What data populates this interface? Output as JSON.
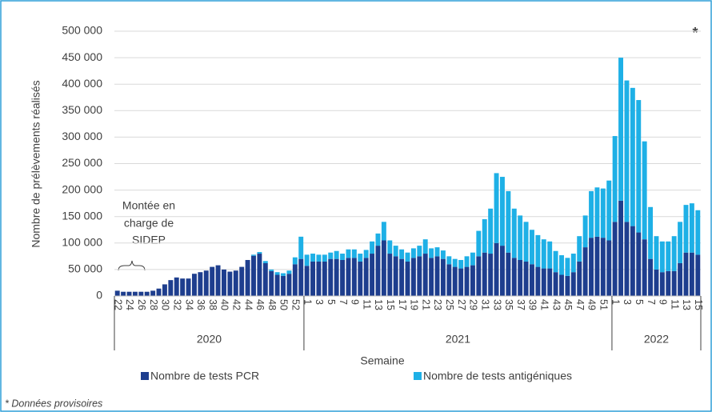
{
  "chart_data": {
    "type": "stacked_bar",
    "y_label": "Nombre de prélèvements réalisés",
    "x_label": "Semaine",
    "asterisk": "*",
    "footnote": "* Données provisoires",
    "annotation": [
      "Montée en",
      "charge de",
      "SIDEP"
    ],
    "groups": [
      {
        "label": "2020",
        "categories": [
          "22",
          null,
          "24",
          null,
          "26",
          null,
          "28",
          null,
          "30",
          null,
          "32",
          null,
          "34",
          null,
          "36",
          null,
          "38",
          null,
          "40",
          null,
          "42",
          null,
          "44",
          null,
          "46",
          null,
          "48",
          null,
          "50",
          null,
          "52",
          null
        ]
      },
      {
        "label": "2021",
        "categories": [
          "1",
          null,
          "3",
          null,
          "5",
          null,
          "7",
          null,
          "9",
          null,
          "11",
          null,
          "13",
          null,
          "15",
          null,
          "17",
          null,
          "19",
          null,
          "21",
          null,
          "23",
          null,
          "25",
          null,
          "27",
          null,
          "29",
          null,
          "31",
          null,
          "33",
          null,
          "35",
          null,
          "37",
          null,
          "39",
          null,
          "41",
          null,
          "43",
          null,
          "45",
          null,
          "47",
          null,
          "49",
          null,
          "51",
          null
        ]
      },
      {
        "label": "2022",
        "categories": [
          "1",
          null,
          "3",
          null,
          "5",
          null,
          "7",
          null,
          "9",
          null,
          "11",
          null,
          "13",
          null,
          "15"
        ]
      }
    ],
    "series": [
      {
        "name": "Nombre de tests PCR",
        "color": "#1e3e8e",
        "values": [
          10000,
          8000,
          8000,
          8000,
          8000,
          8000,
          10000,
          14000,
          22000,
          30000,
          35000,
          33000,
          33000,
          42000,
          45000,
          48000,
          55000,
          58000,
          50000,
          46000,
          48000,
          55000,
          68000,
          76000,
          80000,
          62000,
          47000,
          40000,
          38000,
          42000,
          60000,
          70000,
          57000,
          65000,
          65000,
          65000,
          70000,
          70000,
          68000,
          72000,
          72000,
          65000,
          72000,
          80000,
          95000,
          105000,
          80000,
          75000,
          70000,
          65000,
          72000,
          75000,
          80000,
          72000,
          75000,
          70000,
          60000,
          55000,
          52000,
          55000,
          58000,
          75000,
          82000,
          80000,
          100000,
          95000,
          82000,
          72000,
          68000,
          65000,
          60000,
          55000,
          52000,
          52000,
          45000,
          40000,
          38000,
          45000,
          65000,
          92000,
          110000,
          112000,
          110000,
          105000,
          140000,
          180000,
          140000,
          132000,
          120000,
          107000,
          70000,
          50000,
          45000,
          47000,
          47000,
          62000,
          82000,
          82000,
          78000
        ]
      },
      {
        "name": "Nombre de tests antigéniques",
        "color": "#1eb0e6",
        "values": [
          0,
          0,
          0,
          0,
          0,
          0,
          0,
          0,
          0,
          0,
          0,
          0,
          0,
          0,
          0,
          0,
          0,
          0,
          0,
          0,
          0,
          0,
          0,
          2000,
          3000,
          4000,
          3000,
          5000,
          5000,
          6000,
          13000,
          42000,
          21000,
          15000,
          13000,
          13000,
          12000,
          15000,
          12000,
          16000,
          16000,
          15000,
          15000,
          23000,
          23000,
          35000,
          25000,
          20000,
          18000,
          17000,
          18000,
          20000,
          27000,
          18000,
          17000,
          16000,
          15000,
          15000,
          16000,
          20000,
          24000,
          48000,
          63000,
          85000,
          132000,
          130000,
          116000,
          93000,
          84000,
          75000,
          65000,
          60000,
          55000,
          51000,
          40000,
          37000,
          34000,
          35000,
          48000,
          60000,
          88000,
          93000,
          93000,
          113000,
          162000,
          270000,
          267000,
          261000,
          250000,
          185000,
          98000,
          63000,
          58000,
          56000,
          66000,
          78000,
          90000,
          93000,
          84000
        ]
      }
    ],
    "ylim": [
      0,
      500000
    ],
    "yticks": [
      {
        "value": 0,
        "label": "0"
      },
      {
        "value": 50000,
        "label": "50 000"
      },
      {
        "value": 100000,
        "label": "100 000"
      },
      {
        "value": 150000,
        "label": "150 000"
      },
      {
        "value": 200000,
        "label": "200 000"
      },
      {
        "value": 250000,
        "label": "250 000"
      },
      {
        "value": 300000,
        "label": "300 000"
      },
      {
        "value": 350000,
        "label": "350 000"
      },
      {
        "value": 400000,
        "label": "400 000"
      },
      {
        "value": 450000,
        "label": "450 000"
      },
      {
        "value": 500000,
        "label": "500 000"
      }
    ],
    "grid": true
  }
}
